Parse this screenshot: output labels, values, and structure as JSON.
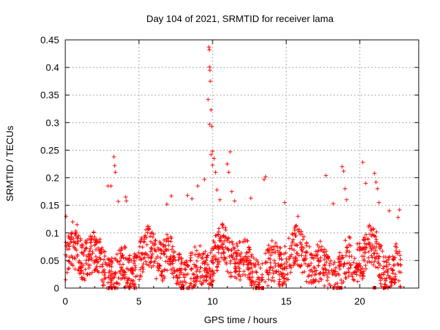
{
  "chart_data": {
    "type": "scatter",
    "title": "Day 104 of 2021, SRMTID for receiver lama",
    "xlabel": "GPS time / hours",
    "ylabel": "SRMTID / TECUs",
    "xlim": [
      0,
      24
    ],
    "ylim": [
      0,
      0.45
    ],
    "x_ticks": [
      0,
      5,
      10,
      15,
      20
    ],
    "x_tick_labels": [
      "0",
      "5",
      "10",
      "15",
      "20"
    ],
    "y_ticks": [
      0,
      0.05,
      0.1,
      0.15,
      0.2,
      0.25,
      0.3,
      0.35,
      0.4,
      0.45
    ],
    "y_tick_labels": [
      "0",
      "0.05",
      "0.1",
      "0.15",
      "0.2",
      "0.25",
      "0.3",
      "0.35",
      "0.4",
      "0.45"
    ],
    "grid": true,
    "marker": "plus",
    "color": "#ff0000",
    "data_range_hours": [
      0,
      22.8
    ],
    "series": [
      {
        "name": "SRMTID",
        "notable_points": [
          {
            "x": 0.05,
            "y": 0.13
          },
          {
            "x": 0.5,
            "y": 0.12
          },
          {
            "x": 0.8,
            "y": 0.115
          },
          {
            "x": 2.9,
            "y": 0.185
          },
          {
            "x": 3.1,
            "y": 0.185
          },
          {
            "x": 3.3,
            "y": 0.238
          },
          {
            "x": 3.35,
            "y": 0.222
          },
          {
            "x": 3.4,
            "y": 0.21
          },
          {
            "x": 3.6,
            "y": 0.157
          },
          {
            "x": 4.1,
            "y": 0.165
          },
          {
            "x": 4.15,
            "y": 0.158
          },
          {
            "x": 6.9,
            "y": 0.152
          },
          {
            "x": 7.2,
            "y": 0.167
          },
          {
            "x": 8.3,
            "y": 0.168
          },
          {
            "x": 8.6,
            "y": 0.162
          },
          {
            "x": 9.0,
            "y": 0.185
          },
          {
            "x": 9.45,
            "y": 0.197
          },
          {
            "x": 9.75,
            "y": 0.437
          },
          {
            "x": 9.78,
            "y": 0.432
          },
          {
            "x": 9.8,
            "y": 0.401
          },
          {
            "x": 9.82,
            "y": 0.395
          },
          {
            "x": 9.85,
            "y": 0.375
          },
          {
            "x": 9.7,
            "y": 0.342
          },
          {
            "x": 9.9,
            "y": 0.323
          },
          {
            "x": 9.8,
            "y": 0.297
          },
          {
            "x": 9.95,
            "y": 0.293
          },
          {
            "x": 10.0,
            "y": 0.248
          },
          {
            "x": 9.9,
            "y": 0.242
          },
          {
            "x": 10.1,
            "y": 0.235
          },
          {
            "x": 10.0,
            "y": 0.223
          },
          {
            "x": 10.2,
            "y": 0.21
          },
          {
            "x": 10.3,
            "y": 0.178
          },
          {
            "x": 10.5,
            "y": 0.16
          },
          {
            "x": 11.2,
            "y": 0.247
          },
          {
            "x": 11.0,
            "y": 0.225
          },
          {
            "x": 11.1,
            "y": 0.21
          },
          {
            "x": 11.3,
            "y": 0.175
          },
          {
            "x": 11.5,
            "y": 0.158
          },
          {
            "x": 12.6,
            "y": 0.163
          },
          {
            "x": 13.5,
            "y": 0.197
          },
          {
            "x": 13.6,
            "y": 0.202
          },
          {
            "x": 14.9,
            "y": 0.155
          },
          {
            "x": 15.8,
            "y": 0.13
          },
          {
            "x": 17.7,
            "y": 0.204
          },
          {
            "x": 18.2,
            "y": 0.153
          },
          {
            "x": 18.8,
            "y": 0.22
          },
          {
            "x": 18.9,
            "y": 0.212
          },
          {
            "x": 19.0,
            "y": 0.18
          },
          {
            "x": 19.1,
            "y": 0.16
          },
          {
            "x": 20.2,
            "y": 0.228
          },
          {
            "x": 20.4,
            "y": 0.19
          },
          {
            "x": 21.0,
            "y": 0.208
          },
          {
            "x": 21.1,
            "y": 0.192
          },
          {
            "x": 21.2,
            "y": 0.18
          },
          {
            "x": 21.3,
            "y": 0.155
          },
          {
            "x": 22.0,
            "y": 0.14
          },
          {
            "x": 22.7,
            "y": 0.142
          },
          {
            "x": 22.6,
            "y": 0.128
          }
        ],
        "baseline_band": {
          "typical_min": 0.0,
          "typical_max": 0.1
        },
        "zero_values_hours": [
          18.7,
          21.0,
          21.7
        ]
      }
    ]
  }
}
